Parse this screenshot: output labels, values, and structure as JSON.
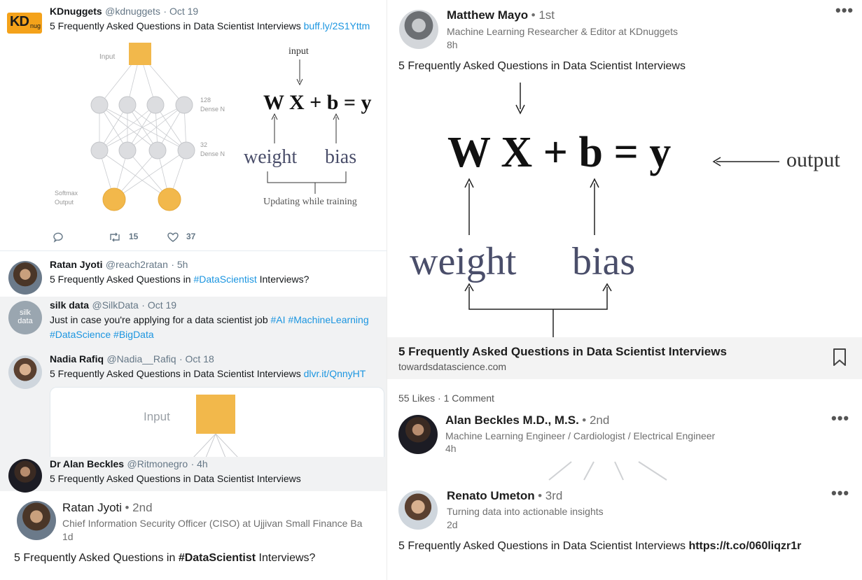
{
  "tweets": {
    "kd": {
      "name": "KDnuggets",
      "handle": "@kdnuggets",
      "time": "· Oct 19",
      "text": "5 Frequently Asked Questions in Data Scientist Interviews",
      "link": "buff.ly/2S1Yttm",
      "retweets": "15",
      "likes": "37"
    },
    "ratan": {
      "name": "Ratan Jyoti",
      "handle": "@reach2ratan",
      "time": "· 5h",
      "text_before": "5 Frequently Asked Questions in",
      "hashtag": "#DataScientist",
      "text_after": "Interviews?"
    },
    "silk": {
      "name": "silk data",
      "handle": "@SilkData",
      "time": "· Oct 19",
      "text": "Just in case you're applying for a data scientist job",
      "tags_line1": "#AI #MachineLearning",
      "tags_line2": "#DataScience #BigData",
      "avatar_text": "silk\ndata"
    },
    "nadia": {
      "name": "Nadia Rafiq",
      "handle": "@Nadia__Rafiq",
      "time": "· Oct 18",
      "text": "5 Frequently Asked Questions in Data Scientist Interviews",
      "link": "dlvr.it/QnnyHT",
      "card_input_label": "Input"
    },
    "alan": {
      "name": "Dr Alan Beckles",
      "handle": "@Ritmonegro",
      "time": "· 4h",
      "text": "5 Frequently Asked Questions in Data Scientist Interviews"
    }
  },
  "diagram_small": {
    "input_label": "Input",
    "dense1_label": "128\nDense N",
    "dense2_label": "32\nDense N",
    "softmax_label": "Softmax\nOutput",
    "eq_input": "input",
    "eq": "W X + b = y",
    "weight": "weight",
    "bias": "bias",
    "updating": "Updating while training"
  },
  "linkedin": {
    "matthew": {
      "name": "Matthew Mayo",
      "degree": "• 1st",
      "title": "Machine Learning Researcher & Editor at KDnuggets",
      "time": "8h",
      "text": "5 Frequently Asked Questions in Data Scientist Interviews"
    },
    "big_diagram": {
      "eq": "W X + b = y",
      "output": "output",
      "weight": "weight",
      "bias": "bias"
    },
    "article": {
      "title": "5 Frequently Asked Questions in Data Scientist Interviews",
      "source": "towardsdatascience.com"
    },
    "stats": "55 Likes · 1 Comment",
    "alan": {
      "name": "Alan Beckles M.D., M.S.",
      "degree": "• 2nd",
      "title": "Machine Learning Engineer / Cardiologist / Electrical Engineer",
      "time": "4h"
    },
    "renato": {
      "name": "Renato Umeton",
      "degree": "• 3rd",
      "title": "Turning data into actionable insights",
      "time": "2d",
      "text": "5 Frequently Asked Questions in Data Scientist Interviews",
      "link": "https://t.co/060liqzr1r"
    },
    "ratan": {
      "name": "Ratan Jyoti",
      "degree": "• 2nd",
      "title": "Chief Information Security Officer (CISO) at Ujjivan Small Finance Ba",
      "time": "1d",
      "text_before": "5 Frequently Asked Questions in",
      "hashtag": "#DataScientist",
      "text_after": "Interviews?"
    }
  },
  "colors": {
    "twitter_link": "#1b95e0",
    "node_orange": "#f2b84b",
    "node_grey": "#dcdde0"
  }
}
